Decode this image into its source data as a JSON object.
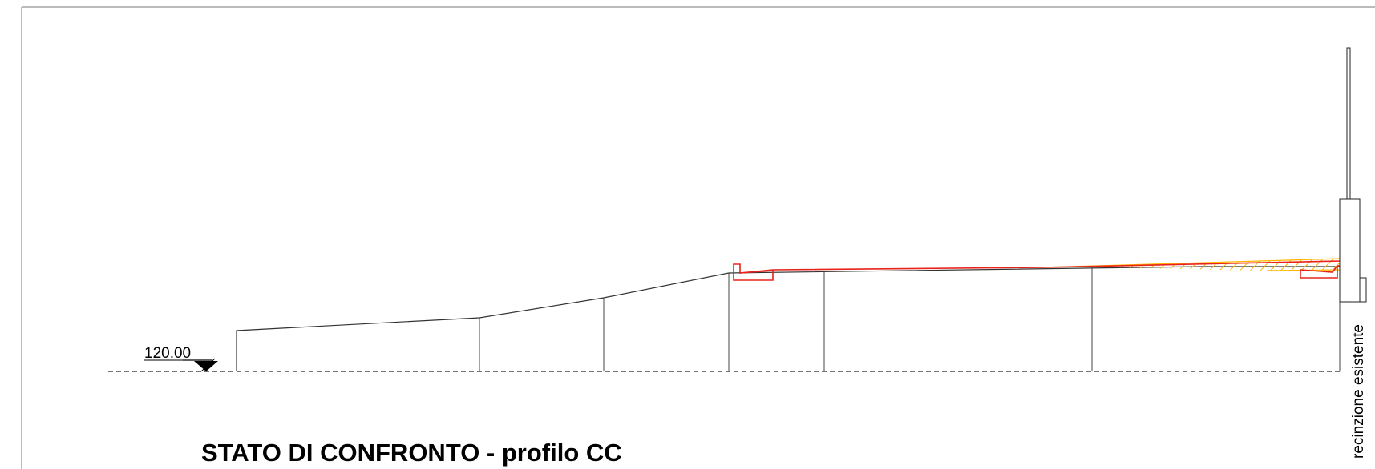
{
  "elevation_mark": "120.00",
  "section_title": "STATO DI CONFRONTO - profilo CC",
  "vertical_label": "recinzione esistente",
  "colors": {
    "existing_profile": "#333333",
    "project_profile": "#e8231c",
    "fill_hatch": "#ffb400"
  }
}
